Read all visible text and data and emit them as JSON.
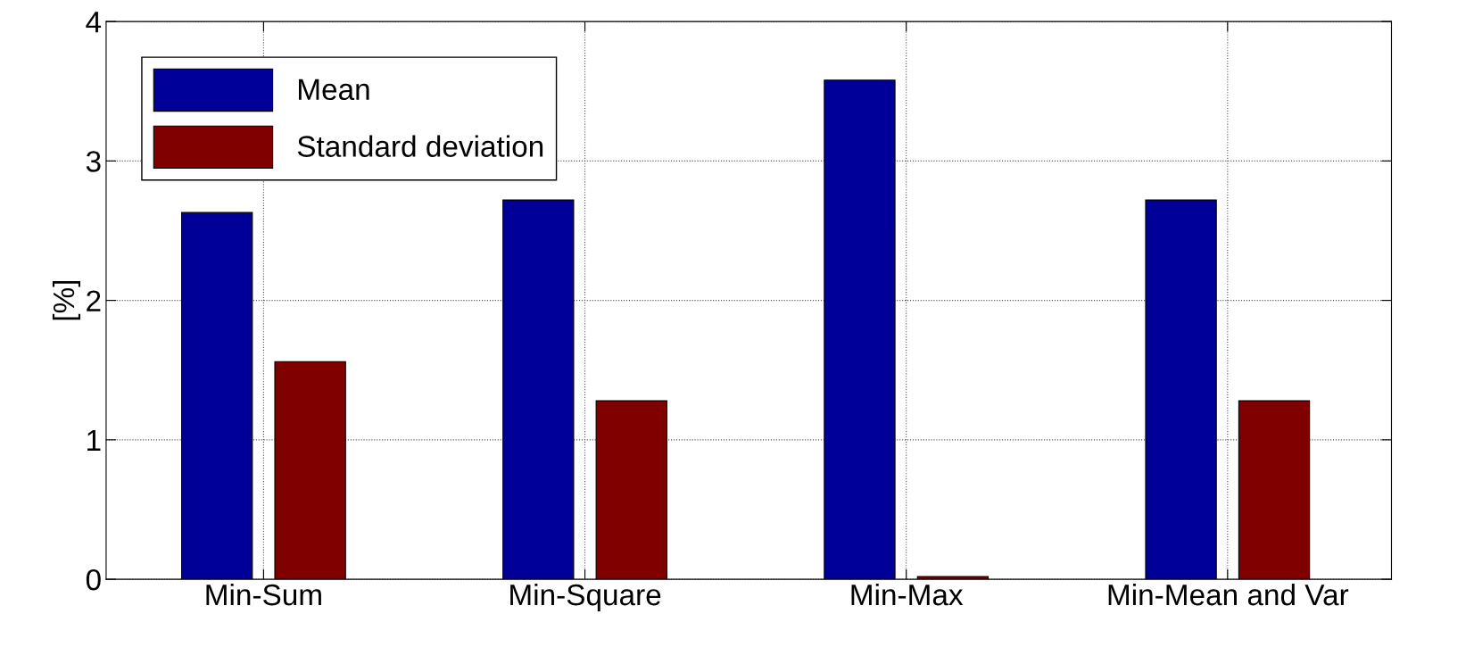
{
  "chart_data": {
    "type": "bar",
    "ylabel": "[%]",
    "categories": [
      "Min-Sum",
      "Min-Square",
      "Min-Max",
      "Min-Mean and Var"
    ],
    "series": [
      {
        "name": "Mean",
        "color": "#000099",
        "values": [
          2.63,
          2.72,
          3.58,
          2.72
        ]
      },
      {
        "name": "Standard deviation",
        "color": "#800000",
        "values": [
          1.56,
          1.28,
          0.02,
          1.28
        ]
      }
    ],
    "ylim": [
      0,
      4
    ],
    "yticks": [
      0,
      1,
      2,
      3,
      4
    ],
    "grid": true,
    "legend": "top left"
  }
}
